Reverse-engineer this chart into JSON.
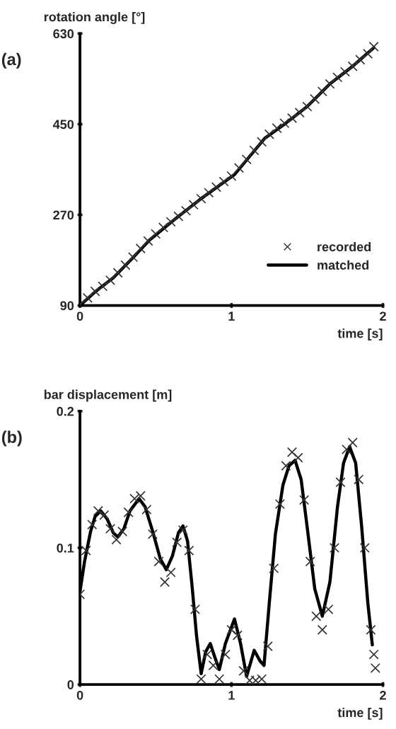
{
  "chart_data": [
    {
      "type": "line",
      "xlabel": "time [s]",
      "ylabel": "rotation angle [°]",
      "annotations": [
        "(a)"
      ],
      "xlim": [
        0,
        2
      ],
      "ylim": [
        90,
        630
      ],
      "xticks": [
        0,
        1,
        2
      ],
      "yticks": [
        90,
        270,
        450,
        630
      ],
      "grid": false,
      "legend": "bottom right",
      "series": [
        {
          "name": "recorded",
          "type": "scatter",
          "marker": "cross",
          "color": "#333333",
          "x": [
            0,
            0.05,
            0.1,
            0.15,
            0.2,
            0.25,
            0.3,
            0.35,
            0.4,
            0.45,
            0.5,
            0.55,
            0.6,
            0.65,
            0.7,
            0.75,
            0.8,
            0.85,
            0.9,
            0.95,
            1.0,
            1.05,
            1.1,
            1.15,
            1.2,
            1.25,
            1.3,
            1.35,
            1.4,
            1.45,
            1.5,
            1.55,
            1.6,
            1.65,
            1.7,
            1.75,
            1.8,
            1.85,
            1.9,
            1.94
          ],
          "values": [
            92,
            105,
            118,
            128,
            140,
            155,
            170,
            186,
            203,
            218,
            232,
            245,
            256,
            267,
            278,
            290,
            302,
            314,
            325,
            336,
            347,
            363,
            380,
            398,
            415,
            430,
            442,
            452,
            462,
            473,
            485,
            500,
            515,
            530,
            543,
            554,
            565,
            578,
            590,
            604
          ]
        },
        {
          "name": "matched",
          "color": "#000000",
          "x": [
            0,
            0.1,
            0.22,
            0.35,
            0.46,
            0.6,
            0.79,
            1.02,
            1.22,
            1.35,
            1.5,
            1.65,
            1.8,
            1.94
          ],
          "values": [
            90,
            117,
            145,
            185,
            220,
            255,
            300,
            350,
            422,
            450,
            485,
            530,
            565,
            602
          ]
        }
      ]
    },
    {
      "type": "line",
      "xlabel": "time [s]",
      "ylabel": "bar displacement [m]",
      "annotations": [
        "(b)"
      ],
      "xlim": [
        0,
        2
      ],
      "ylim": [
        0,
        0.2
      ],
      "xticks": [
        0,
        1,
        2
      ],
      "yticks": [
        0,
        0.1,
        0.2
      ],
      "grid": false,
      "series": [
        {
          "type": "scatter",
          "marker": "cross",
          "color": "#333333",
          "x": [
            0,
            0.04,
            0.08,
            0.12,
            0.16,
            0.2,
            0.24,
            0.28,
            0.32,
            0.36,
            0.4,
            0.44,
            0.48,
            0.52,
            0.56,
            0.6,
            0.64,
            0.68,
            0.72,
            0.76,
            0.8,
            0.84,
            0.88,
            0.92,
            0.96,
            1.0,
            1.04,
            1.08,
            1.12,
            1.16,
            1.2,
            1.24,
            1.28,
            1.32,
            1.36,
            1.4,
            1.44,
            1.48,
            1.52,
            1.56,
            1.6,
            1.64,
            1.68,
            1.72,
            1.76,
            1.8,
            1.84,
            1.88,
            1.92,
            1.94,
            1.95
          ],
          "values": [
            0.066,
            0.098,
            0.117,
            0.127,
            0.124,
            0.114,
            0.106,
            0.112,
            0.126,
            0.136,
            0.138,
            0.128,
            0.11,
            0.09,
            0.075,
            0.082,
            0.104,
            0.113,
            0.098,
            0.055,
            0.004,
            0.022,
            0.014,
            0.004,
            0.022,
            0.04,
            0.036,
            0.01,
            0.003,
            0.003,
            0.004,
            0.028,
            0.085,
            0.132,
            0.16,
            0.17,
            0.166,
            0.135,
            0.09,
            0.05,
            0.04,
            0.055,
            0.1,
            0.148,
            0.172,
            0.177,
            0.15,
            0.1,
            0.04,
            0.022,
            0.012
          ]
        },
        {
          "color": "#000000",
          "x": [
            0,
            0.03,
            0.07,
            0.1,
            0.137,
            0.18,
            0.22,
            0.25,
            0.29,
            0.33,
            0.39,
            0.43,
            0.48,
            0.53,
            0.57,
            0.61,
            0.65,
            0.68,
            0.71,
            0.74,
            0.77,
            0.8,
            0.83,
            0.86,
            0.89,
            0.92,
            0.96,
            1.02,
            1.06,
            1.1,
            1.15,
            1.19,
            1.215,
            1.25,
            1.29,
            1.34,
            1.38,
            1.42,
            1.46,
            1.5,
            1.55,
            1.6,
            1.65,
            1.7,
            1.74,
            1.78,
            1.82,
            1.86,
            1.9,
            1.93
          ],
          "values": [
            0.068,
            0.09,
            0.112,
            0.123,
            0.127,
            0.121,
            0.111,
            0.108,
            0.114,
            0.127,
            0.136,
            0.13,
            0.112,
            0.092,
            0.084,
            0.094,
            0.111,
            0.116,
            0.105,
            0.072,
            0.035,
            0.008,
            0.024,
            0.03,
            0.02,
            0.011,
            0.03,
            0.048,
            0.03,
            0.006,
            0.025,
            0.017,
            0.014,
            0.06,
            0.11,
            0.146,
            0.16,
            0.164,
            0.15,
            0.115,
            0.07,
            0.05,
            0.075,
            0.13,
            0.162,
            0.174,
            0.162,
            0.115,
            0.06,
            0.029
          ]
        }
      ]
    }
  ]
}
